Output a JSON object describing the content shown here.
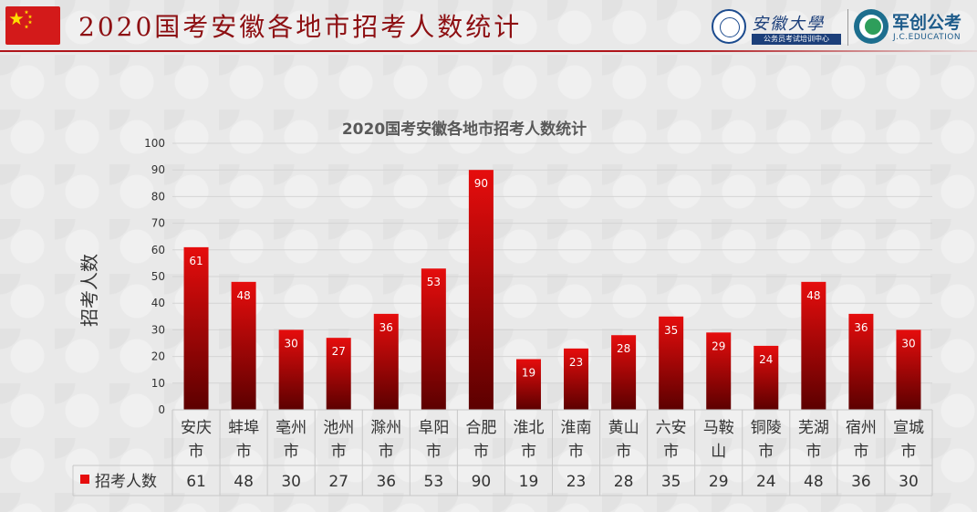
{
  "header": {
    "title": "2020国考安徽各地市招考人数统计",
    "logo_ahu_name": "安徽大學",
    "logo_ahu_sub": "公务员考试培训中心",
    "logo_jc_name": "军创公考",
    "logo_jc_sub": "J.C.EDUCATION"
  },
  "colors": {
    "bar_top": "#e60d0d",
    "bar_bottom": "#5c0000",
    "title_red": "#8d0f12"
  },
  "chart_data": {
    "type": "bar",
    "title": "2020国考安徽各地市招考人数统计",
    "xlabel": "",
    "ylabel": "招考人数",
    "ylim": [
      0,
      100
    ],
    "yticks": [
      0,
      10,
      20,
      30,
      40,
      50,
      60,
      70,
      80,
      90,
      100
    ],
    "grid": true,
    "categories": [
      [
        "安庆",
        "市"
      ],
      [
        "蚌埠",
        "市"
      ],
      [
        "亳州",
        "市"
      ],
      [
        "池州",
        "市"
      ],
      [
        "滁州",
        "市"
      ],
      [
        "阜阳",
        "市"
      ],
      [
        "合肥",
        "市"
      ],
      [
        "淮北",
        "市"
      ],
      [
        "淮南",
        "市"
      ],
      [
        "黄山",
        "市"
      ],
      [
        "六安",
        "市"
      ],
      [
        "马鞍",
        "山"
      ],
      [
        "铜陵",
        "市"
      ],
      [
        "芜湖",
        "市"
      ],
      [
        "宿州",
        "市"
      ],
      [
        "宣城",
        "市"
      ]
    ],
    "series": [
      {
        "name": "招考人数",
        "values": [
          61,
          48,
          30,
          27,
          36,
          53,
          90,
          19,
          23,
          28,
          35,
          29,
          24,
          48,
          36,
          30
        ]
      }
    ],
    "data_table": true
  }
}
